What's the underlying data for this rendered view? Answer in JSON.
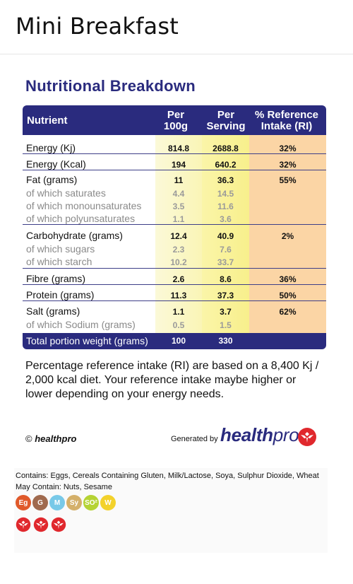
{
  "page": {
    "title": "Mini Breakfast"
  },
  "nutrition": {
    "heading": "Nutritional Breakdown",
    "headers": {
      "nutrient": "Nutrient",
      "per100g_1": "Per",
      "per100g_2": "100g",
      "perServing_1": "Per",
      "perServing_2": "Serving",
      "ri_1": "% Reference",
      "ri_2": "Intake (RI)"
    },
    "rows": [
      {
        "name": "Energy (Kj)",
        "per100g": "814.8",
        "perServing": "2688.8",
        "ri": "32%",
        "sub": false
      },
      {
        "name": "Energy (Kcal)",
        "per100g": "194",
        "perServing": "640.2",
        "ri": "32%",
        "sub": false
      },
      {
        "name": "Fat (grams)",
        "per100g": "11",
        "perServing": "36.3",
        "ri": "55%",
        "sub": false
      },
      {
        "name": "of which saturates",
        "per100g": "4.4",
        "perServing": "14.5",
        "ri": "",
        "sub": true
      },
      {
        "name": "of which monounsaturates",
        "per100g": "3.5",
        "perServing": "11.6",
        "ri": "",
        "sub": true
      },
      {
        "name": "of which polyunsaturates",
        "per100g": "1.1",
        "perServing": "3.6",
        "ri": "",
        "sub": true
      },
      {
        "name": "Carbohydrate (grams)",
        "per100g": "12.4",
        "perServing": "40.9",
        "ri": "2%",
        "sub": false
      },
      {
        "name": "of which sugars",
        "per100g": "2.3",
        "perServing": "7.6",
        "ri": "",
        "sub": true
      },
      {
        "name": "of which starch",
        "per100g": "10.2",
        "perServing": "33.7",
        "ri": "",
        "sub": true
      },
      {
        "name": "Fibre (grams)",
        "per100g": "2.6",
        "perServing": "8.6",
        "ri": "36%",
        "sub": false
      },
      {
        "name": "Protein (grams)",
        "per100g": "11.3",
        "perServing": "37.3",
        "ri": "50%",
        "sub": false
      },
      {
        "name": "Salt (grams)",
        "per100g": "1.1",
        "perServing": "3.7",
        "ri": "62%",
        "sub": false
      },
      {
        "name": "of which Sodium (grams)",
        "per100g": "0.5",
        "perServing": "1.5",
        "ri": "",
        "sub": true
      }
    ],
    "total": {
      "name": "Total portion weight (grams)",
      "per100g": "100",
      "perServing": "330"
    },
    "note": "Percentage reference intake (RI) are based on a 8,400 Kj / 2,000 kcal diet. Your reference intake maybe higher or lower depending on your energy needs."
  },
  "footer": {
    "copyright_symbol": "©",
    "copyright_brand": "healthpro",
    "generated_by": "Generated by",
    "brand_bold": "health",
    "brand_thin": "pro"
  },
  "allergens": {
    "contains": "Contains: Eggs, Cereals Containing Gluten, Milk/Lactose, Soya, Sulphur Dioxide, Wheat",
    "may_contain": "May Contain: Nuts, Sesame",
    "badges": [
      {
        "label": "Eg",
        "color": "#e0592a"
      },
      {
        "label": "G",
        "color": "#a06a4e"
      },
      {
        "label": "M",
        "color": "#78c9e8"
      },
      {
        "label": "Sy",
        "color": "#d4b06a"
      },
      {
        "label": "SO²",
        "color": "#b5d334"
      },
      {
        "label": "W",
        "color": "#f3d22c"
      }
    ],
    "may_contain_icons": [
      "healthpro-logo-icon",
      "healthpro-logo-icon",
      "healthpro-logo-icon"
    ]
  },
  "colors": {
    "navy": "#2a2b7e",
    "brand_red": "#e0282d"
  }
}
